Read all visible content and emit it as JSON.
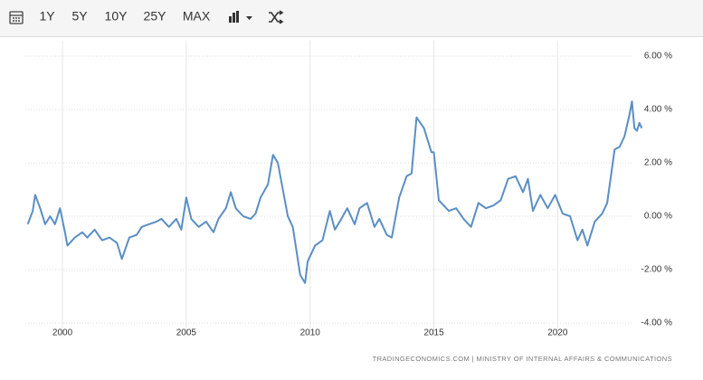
{
  "toolbar": {
    "ranges": [
      "1Y",
      "5Y",
      "10Y",
      "25Y",
      "MAX"
    ]
  },
  "chart_data": {
    "type": "line",
    "source": "TRADINGECONOMICS.COM | MINISTRY OF INTERNAL AFFAIRS & COMMUNICATIONS",
    "color": "#5b8ec4",
    "x": [
      1998.6,
      1998.8,
      1998.9,
      1999.1,
      1999.3,
      1999.5,
      1999.7,
      1999.9,
      2000.1,
      2000.2,
      2000.5,
      2000.8,
      2001.0,
      2001.3,
      2001.6,
      2001.9,
      2002.2,
      2002.4,
      2002.7,
      2003.0,
      2003.2,
      2003.5,
      2003.8,
      2004.0,
      2004.3,
      2004.6,
      2004.8,
      2005.0,
      2005.2,
      2005.5,
      2005.8,
      2006.1,
      2006.3,
      2006.6,
      2006.8,
      2007.0,
      2007.3,
      2007.6,
      2007.8,
      2008.0,
      2008.3,
      2008.5,
      2008.7,
      2008.9,
      2009.1,
      2009.3,
      2009.6,
      2009.8,
      2009.9,
      2010.2,
      2010.5,
      2010.8,
      2011.0,
      2011.2,
      2011.5,
      2011.8,
      2012.0,
      2012.3,
      2012.6,
      2012.8,
      2013.1,
      2013.3,
      2013.6,
      2013.9,
      2014.1,
      2014.3,
      2014.6,
      2014.9,
      2015.0,
      2015.2,
      2015.4,
      2015.6,
      2015.9,
      2016.2,
      2016.5,
      2016.8,
      2017.1,
      2017.4,
      2017.7,
      2018.0,
      2018.3,
      2018.6,
      2018.8,
      2019.0,
      2019.3,
      2019.6,
      2019.9,
      2020.2,
      2020.5,
      2020.8,
      2021.0,
      2021.2,
      2021.5,
      2021.8,
      2022.0,
      2022.3,
      2022.5,
      2022.7,
      2022.9,
      2023.0,
      2023.1,
      2023.2,
      2023.3,
      2023.4
    ],
    "values": [
      -0.3,
      0.2,
      0.8,
      0.3,
      -0.3,
      0.0,
      -0.3,
      0.3,
      -0.6,
      -1.1,
      -0.8,
      -0.6,
      -0.8,
      -0.5,
      -0.9,
      -0.8,
      -1.0,
      -1.6,
      -0.8,
      -0.7,
      -0.4,
      -0.3,
      -0.2,
      -0.1,
      -0.4,
      -0.1,
      -0.5,
      0.7,
      -0.1,
      -0.4,
      -0.2,
      -0.6,
      -0.1,
      0.3,
      0.9,
      0.3,
      0.0,
      -0.1,
      0.1,
      0.7,
      1.2,
      2.3,
      2.0,
      1.0,
      0.0,
      -0.4,
      -2.2,
      -2.5,
      -1.7,
      -1.1,
      -0.9,
      0.2,
      -0.5,
      -0.2,
      0.3,
      -0.3,
      0.3,
      0.5,
      -0.4,
      -0.1,
      -0.7,
      -0.8,
      0.7,
      1.5,
      1.6,
      3.7,
      3.3,
      2.4,
      2.4,
      0.6,
      0.4,
      0.2,
      0.3,
      -0.1,
      -0.4,
      0.5,
      0.3,
      0.4,
      0.6,
      1.4,
      1.5,
      0.9,
      1.4,
      0.2,
      0.8,
      0.3,
      0.8,
      0.1,
      0.0,
      -0.9,
      -0.5,
      -1.1,
      -0.2,
      0.1,
      0.5,
      2.5,
      2.6,
      3.0,
      3.8,
      4.3,
      3.3,
      3.2,
      3.5,
      3.3
    ],
    "xlim": [
      1998.5,
      2024.7
    ],
    "xticks": [
      2000,
      2005,
      2010,
      2015,
      2020
    ],
    "ylim": [
      -4,
      6
    ],
    "yticks": [
      {
        "value": -4,
        "label": "-4.00 %"
      },
      {
        "value": -2,
        "label": "-2.00 %"
      },
      {
        "value": 0,
        "label": "0.00 %"
      },
      {
        "value": 2,
        "label": "2.00 %"
      },
      {
        "value": 4,
        "label": "4.00 %"
      },
      {
        "value": 6,
        "label": "6.00 %"
      }
    ],
    "grid": true
  }
}
